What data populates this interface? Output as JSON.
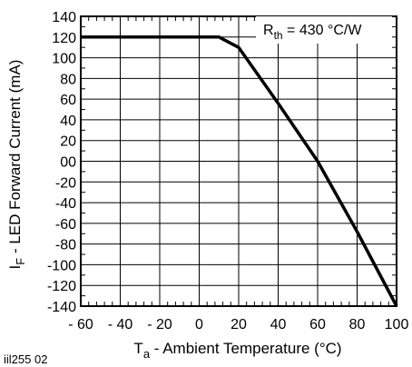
{
  "chart_data": {
    "type": "line",
    "xlabel": "T",
    "xlabel_sub": "a",
    "xlabel_rest": " - Ambient Temperature  (°C)",
    "ylabel": "I",
    "ylabel_sub": "F",
    "ylabel_rest": " - LED Forward Current (mA)",
    "xlim": [
      -60,
      100
    ],
    "ylim": [
      -140,
      140
    ],
    "x_ticks": [
      -60,
      -40,
      -20,
      0,
      20,
      40,
      60,
      80,
      100
    ],
    "x_tick_labels": [
      "- 60",
      "- 40",
      "- 20",
      "0",
      "20",
      "40",
      "60",
      "80",
      "100"
    ],
    "y_ticks": [
      140,
      120,
      100,
      80,
      60,
      40,
      20,
      0,
      -20,
      -40,
      -60,
      -80,
      -100,
      -120,
      -140
    ],
    "y_tick_labels": [
      "140",
      "120",
      "100",
      "80",
      "60",
      "40",
      "20",
      "00",
      "-20",
      "-40",
      "-60",
      "-80",
      "-100",
      "-120",
      "-140"
    ],
    "grid": true,
    "series": [
      {
        "x": [
          -60,
          10,
          20,
          40,
          60,
          80,
          100
        ],
        "y": [
          120,
          120,
          110,
          56,
          0,
          -68,
          -140
        ]
      }
    ],
    "annotation": {
      "prefix": "R",
      "sub": "th",
      "suffix": " = 430 °C/W"
    },
    "figure_id": "iil255  02"
  }
}
